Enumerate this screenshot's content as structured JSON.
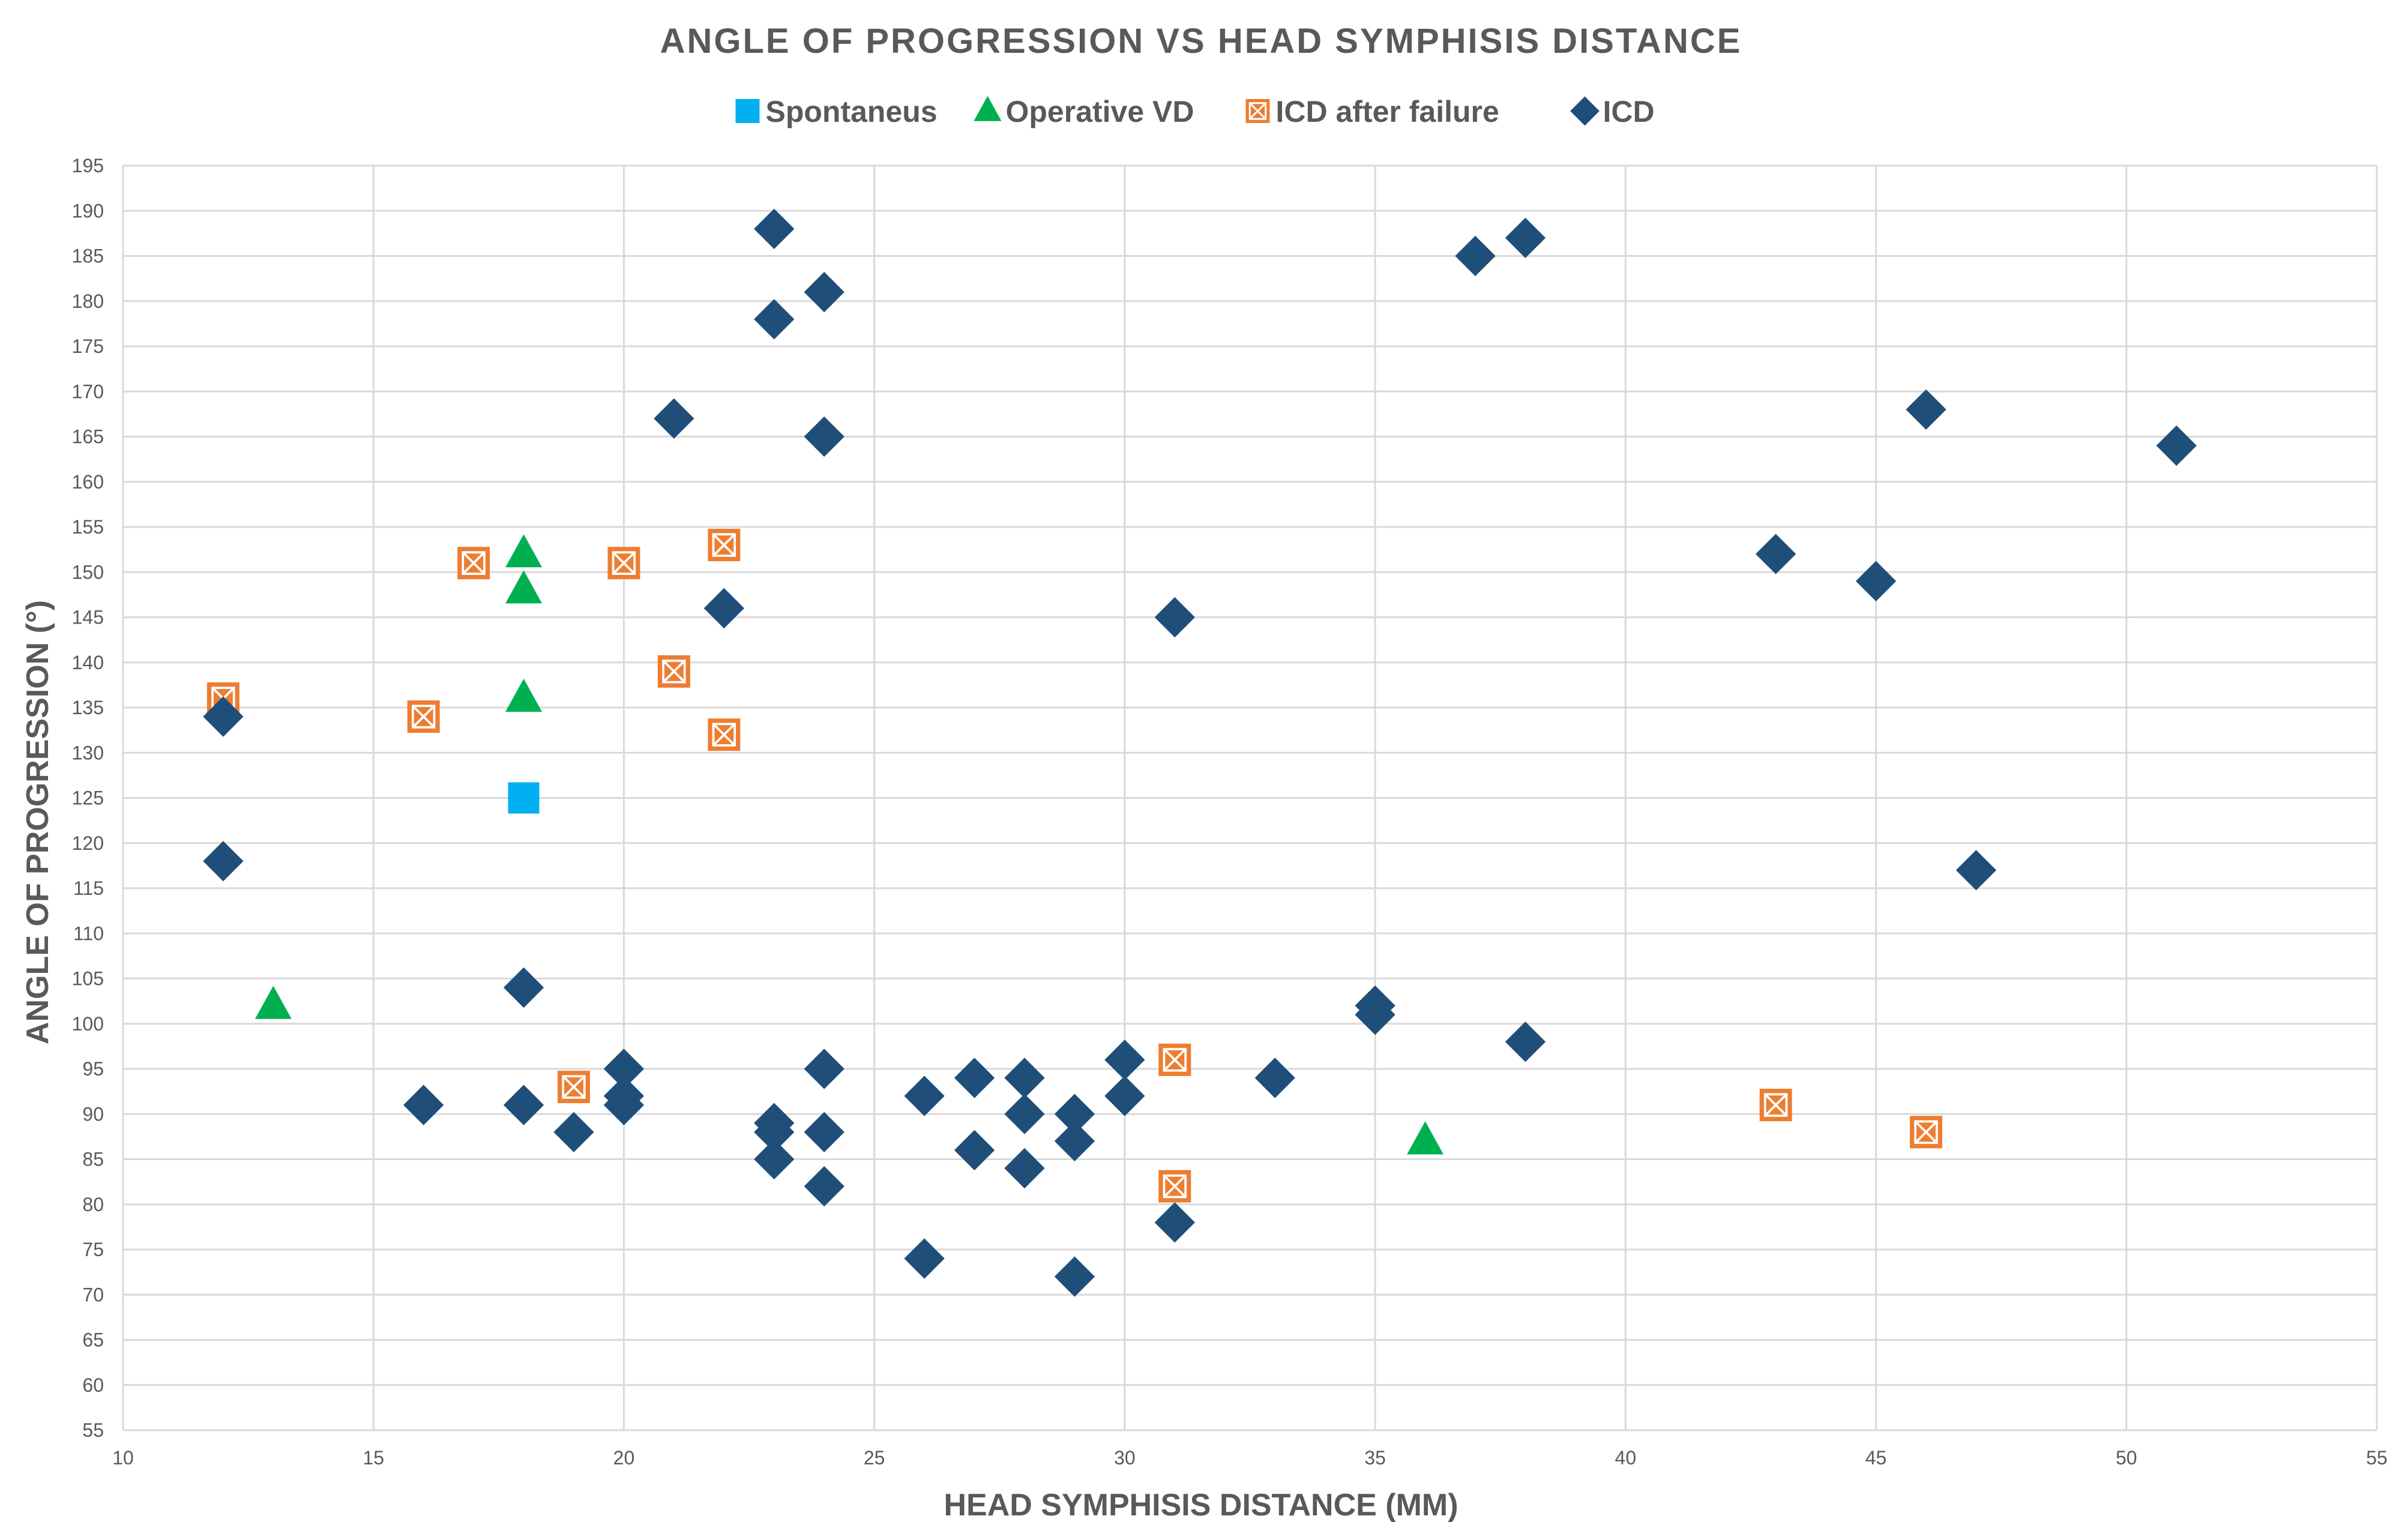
{
  "chart_data": {
    "type": "scatter",
    "title": "ANGLE OF PROGRESSION VS HEAD SYMPHISIS DISTANCE",
    "xlabel": "HEAD SYMPHISIS DISTANCE (MM)",
    "ylabel": "ANGLE OF PROGRESSION (°)",
    "xlim": [
      10,
      55
    ],
    "ylim": [
      55,
      195
    ],
    "xticks": [
      10,
      15,
      20,
      25,
      30,
      35,
      40,
      45,
      50,
      55
    ],
    "yticks": [
      55,
      60,
      65,
      70,
      75,
      80,
      85,
      90,
      95,
      100,
      105,
      110,
      115,
      120,
      125,
      130,
      135,
      140,
      145,
      150,
      155,
      160,
      165,
      170,
      175,
      180,
      185,
      190,
      195
    ],
    "grid": true,
    "legend_position": "top",
    "series": [
      {
        "name": "Spontaneus",
        "marker": "square",
        "color": "#00b0f0",
        "points": [
          [
            18,
            125
          ]
        ]
      },
      {
        "name": "Operative VD",
        "marker": "triangle",
        "color": "#00b050",
        "points": [
          [
            18,
            152
          ],
          [
            18,
            148
          ],
          [
            18,
            136
          ],
          [
            13,
            102
          ],
          [
            36,
            87
          ]
        ]
      },
      {
        "name": "ICD after failure",
        "marker": "square-x",
        "color": "#ed7d31",
        "points": [
          [
            12,
            136
          ],
          [
            16,
            134
          ],
          [
            17,
            151
          ],
          [
            20,
            151
          ],
          [
            21,
            139
          ],
          [
            22,
            153
          ],
          [
            22,
            132
          ],
          [
            19,
            93
          ],
          [
            31,
            96
          ],
          [
            31,
            82
          ],
          [
            43,
            91
          ],
          [
            46,
            88
          ]
        ]
      },
      {
        "name": "ICD",
        "marker": "diamond",
        "color": "#1f4e79",
        "points": [
          [
            23,
            188
          ],
          [
            24,
            181
          ],
          [
            23,
            178
          ],
          [
            24,
            165
          ],
          [
            21,
            167
          ],
          [
            22,
            146
          ],
          [
            37,
            185
          ],
          [
            38,
            187
          ],
          [
            46,
            168
          ],
          [
            51,
            164
          ],
          [
            43,
            152
          ],
          [
            45,
            149
          ],
          [
            31,
            145
          ],
          [
            47,
            117
          ],
          [
            12,
            134
          ],
          [
            12,
            118
          ],
          [
            18,
            104
          ],
          [
            16,
            91
          ],
          [
            18,
            91
          ],
          [
            19,
            88
          ],
          [
            20,
            95
          ],
          [
            20,
            92
          ],
          [
            20,
            91
          ],
          [
            23,
            89
          ],
          [
            23,
            88
          ],
          [
            23,
            85
          ],
          [
            24,
            95
          ],
          [
            24,
            88
          ],
          [
            24,
            82
          ],
          [
            26,
            92
          ],
          [
            26,
            74
          ],
          [
            27,
            94
          ],
          [
            27,
            86
          ],
          [
            28,
            94
          ],
          [
            28,
            90
          ],
          [
            28,
            84
          ],
          [
            29,
            90
          ],
          [
            29,
            87
          ],
          [
            29,
            72
          ],
          [
            30,
            96
          ],
          [
            30,
            92
          ],
          [
            31,
            78
          ],
          [
            33,
            94
          ],
          [
            35,
            102
          ],
          [
            35,
            101
          ],
          [
            38,
            98
          ]
        ]
      }
    ]
  }
}
